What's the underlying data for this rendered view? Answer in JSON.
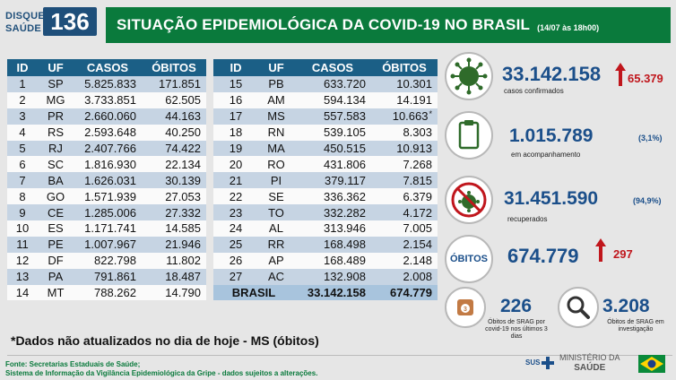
{
  "header": {
    "logo_line1": "DISQUE",
    "logo_line2": "SAÚDE",
    "logo_number": "136",
    "title": "SITUAÇÃO EPIDEMIOLÓGICA DA COVID-19 NO BRASIL",
    "date": "(14/07 às 18h00)"
  },
  "table_headers": [
    "ID",
    "UF",
    "CASOS",
    "ÓBITOS"
  ],
  "table_left": [
    {
      "id": "1",
      "uf": "SP",
      "casos": "5.825.833",
      "obitos": "171.851"
    },
    {
      "id": "2",
      "uf": "MG",
      "casos": "3.733.851",
      "obitos": "62.505"
    },
    {
      "id": "3",
      "uf": "PR",
      "casos": "2.660.060",
      "obitos": "44.163"
    },
    {
      "id": "4",
      "uf": "RS",
      "casos": "2.593.648",
      "obitos": "40.250"
    },
    {
      "id": "5",
      "uf": "RJ",
      "casos": "2.407.766",
      "obitos": "74.422"
    },
    {
      "id": "6",
      "uf": "SC",
      "casos": "1.816.930",
      "obitos": "22.134"
    },
    {
      "id": "7",
      "uf": "BA",
      "casos": "1.626.031",
      "obitos": "30.139"
    },
    {
      "id": "8",
      "uf": "GO",
      "casos": "1.571.939",
      "obitos": "27.053"
    },
    {
      "id": "9",
      "uf": "CE",
      "casos": "1.285.006",
      "obitos": "27.332"
    },
    {
      "id": "10",
      "uf": "ES",
      "casos": "1.171.741",
      "obitos": "14.585"
    },
    {
      "id": "11",
      "uf": "PE",
      "casos": "1.007.967",
      "obitos": "21.946"
    },
    {
      "id": "12",
      "uf": "DF",
      "casos": "822.798",
      "obitos": "11.802"
    },
    {
      "id": "13",
      "uf": "PA",
      "casos": "791.861",
      "obitos": "18.487"
    },
    {
      "id": "14",
      "uf": "MT",
      "casos": "788.262",
      "obitos": "14.790"
    }
  ],
  "table_right": [
    {
      "id": "15",
      "uf": "PB",
      "casos": "633.720",
      "obitos": "10.301"
    },
    {
      "id": "16",
      "uf": "AM",
      "casos": "594.134",
      "obitos": "14.191"
    },
    {
      "id": "17",
      "uf": "MS",
      "casos": "557.583",
      "obitos": "10.663",
      "note": "*"
    },
    {
      "id": "18",
      "uf": "RN",
      "casos": "539.105",
      "obitos": "8.303"
    },
    {
      "id": "19",
      "uf": "MA",
      "casos": "450.515",
      "obitos": "10.913"
    },
    {
      "id": "20",
      "uf": "RO",
      "casos": "431.806",
      "obitos": "7.268"
    },
    {
      "id": "21",
      "uf": "PI",
      "casos": "379.117",
      "obitos": "7.815"
    },
    {
      "id": "22",
      "uf": "SE",
      "casos": "336.362",
      "obitos": "6.379"
    },
    {
      "id": "23",
      "uf": "TO",
      "casos": "332.282",
      "obitos": "4.172"
    },
    {
      "id": "24",
      "uf": "AL",
      "casos": "313.946",
      "obitos": "7.005"
    },
    {
      "id": "25",
      "uf": "RR",
      "casos": "168.498",
      "obitos": "2.154"
    },
    {
      "id": "26",
      "uf": "AP",
      "casos": "168.489",
      "obitos": "2.148"
    },
    {
      "id": "27",
      "uf": "AC",
      "casos": "132.908",
      "obitos": "2.008"
    }
  ],
  "brasil_row": {
    "label": "BRASIL",
    "casos": "33.142.158",
    "obitos": "674.779"
  },
  "summary": {
    "confirmed": {
      "value": "33.142.158",
      "delta": "65.379",
      "label": "casos confirmados"
    },
    "monitoring": {
      "value": "1.015.789",
      "percent": "(3,1%)",
      "label": "em acompanhamento"
    },
    "recovered": {
      "value": "31.451.590",
      "percent": "(94,9%)",
      "label": "recuperados"
    },
    "deaths": {
      "badge": "ÓBITOS",
      "value": "674.779",
      "delta": "297"
    },
    "srag_recent": {
      "value": "226",
      "label": "Óbitos de SRAG por covid-19 nos últimos 3 dias",
      "icon_number": "3"
    },
    "srag_investigation": {
      "value": "3.208",
      "label": "Óbitos de SRAG em investigação"
    }
  },
  "footer": {
    "note": "*Dados não atualizados no dia de hoje - MS (óbitos)",
    "source_line1": "Fonte: Secretarias Estaduais de Saúde;",
    "source_line2": "Sistema de Informação da Vigilância Epidemiológica da Gripe - dados sujeitos a alterações.",
    "sus": "SUS",
    "ministry_line1": "MINISTÉRIO DA",
    "ministry_line2": "SAÚDE"
  },
  "colors": {
    "header_green": "#0a7a3c",
    "table_blue": "#1b5f86",
    "number_blue": "#1b4f8a",
    "alert_red": "#c0161c"
  }
}
